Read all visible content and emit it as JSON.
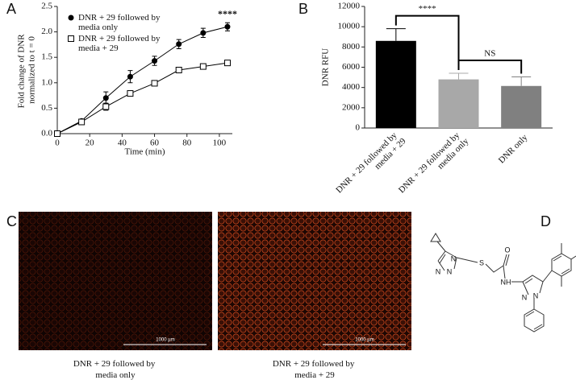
{
  "panels": [
    "A",
    "B",
    "C",
    "D"
  ],
  "chart_data": [
    {
      "type": "line",
      "xlabel": "Time (min)",
      "ylabel": "Fold change of DNR normalized to t = 0",
      "x": [
        0,
        15,
        30,
        45,
        60,
        75,
        90,
        105
      ],
      "xlim": [
        0,
        108
      ],
      "xticks": [
        0,
        20,
        40,
        60,
        80,
        100
      ],
      "ylim": [
        0,
        2.5
      ],
      "yticks": [
        {
          "value": 0,
          "label": "0.0"
        },
        0.5,
        {
          "value": 1,
          "label": "1.0"
        },
        1.5,
        {
          "value": 2,
          "label": "2.0"
        },
        2.5
      ],
      "grid": false,
      "legend": "upper left",
      "annotations": [
        "****"
      ],
      "series": [
        {
          "name": "DNR + 29 followed by media only",
          "color": "#000000",
          "marker": "circle",
          "values": [
            0,
            0.25,
            0.7,
            1.12,
            1.43,
            1.76,
            1.98,
            2.1
          ],
          "errors": [
            0.02,
            0.03,
            0.12,
            0.12,
            0.09,
            0.09,
            0.09,
            0.08
          ]
        },
        {
          "name": "DNR + 29 followed by media + 29",
          "color": "#000000",
          "marker": "square-open",
          "values": [
            0,
            0.23,
            0.53,
            0.79,
            0.99,
            1.25,
            1.32,
            1.39
          ],
          "errors": [
            0.02,
            0.03,
            0.07,
            0.05,
            0.03,
            0.05,
            0.05,
            0.04
          ]
        }
      ]
    },
    {
      "type": "bar",
      "ylabel": "DNR RFU",
      "categories": [
        "DNR + 29 followed by media + 29",
        "DNR + 29 followed by media only",
        "DNR only"
      ],
      "values": [
        8600,
        4800,
        4150
      ],
      "errors": [
        1200,
        600,
        900
      ],
      "colors": [
        "#000000",
        "#a8a8a8",
        "#808080"
      ],
      "ylim": [
        0,
        12000
      ],
      "yticks": [
        0,
        2000,
        4000,
        6000,
        8000,
        10000,
        12000
      ],
      "grid": false,
      "annotations": [
        "****",
        "NS"
      ]
    }
  ],
  "images": [
    {
      "caption": "DNR + 29 followed by media only",
      "scale_bar": "1000 µm"
    },
    {
      "caption": "DNR + 29 followed by media + 29",
      "scale_bar": "1000 µm"
    }
  ],
  "molecule": {
    "atoms": [
      "N",
      "N",
      "N",
      "S",
      "O",
      "NH",
      "N",
      "N"
    ]
  }
}
